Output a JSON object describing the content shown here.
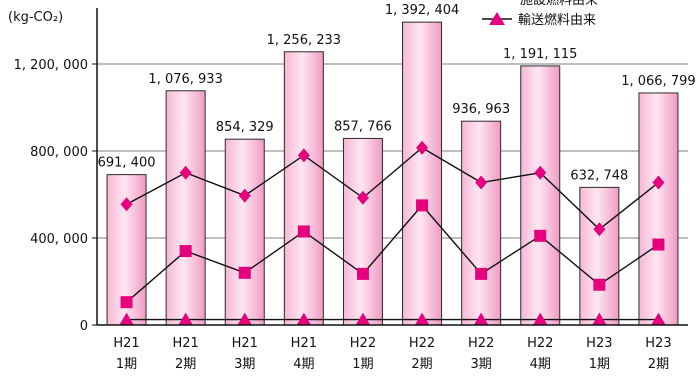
{
  "chart_data": {
    "type": "bar",
    "y_unit_label": "(kg-CO₂)",
    "categories": [
      [
        "H21",
        "1期"
      ],
      [
        "H21",
        "2期"
      ],
      [
        "H21",
        "3期"
      ],
      [
        "H21",
        "4期"
      ],
      [
        "H22",
        "1期"
      ],
      [
        "H22",
        "2期"
      ],
      [
        "H22",
        "3期"
      ],
      [
        "H22",
        "4期"
      ],
      [
        "H23",
        "1期"
      ],
      [
        "H23",
        "2期"
      ]
    ],
    "bar_series": {
      "values": [
        691400,
        1076933,
        854329,
        1256233,
        857766,
        1392404,
        936963,
        1191115,
        632748,
        1066799
      ],
      "labels": [
        "691, 400",
        "1, 076, 933",
        "854, 329",
        "1, 256, 233",
        "857, 766",
        "1, 392, 404",
        "936, 963",
        "1, 191, 115",
        "632, 748",
        "1, 066, 799"
      ],
      "color": "#f6a9cf"
    },
    "line_series": [
      {
        "marker": "diamond",
        "values": [
          555000,
          700000,
          595000,
          780000,
          585000,
          815000,
          655000,
          700000,
          440000,
          655000
        ],
        "color": "#e6007e"
      },
      {
        "marker": "square",
        "values": [
          105000,
          340000,
          240000,
          430000,
          235000,
          550000,
          235000,
          410000,
          185000,
          370000
        ],
        "color": "#e6007e"
      },
      {
        "name": "輸送燃料由来",
        "marker": "triangle",
        "values": [
          25000,
          25000,
          25000,
          25000,
          25000,
          25000,
          25000,
          25000,
          25000,
          25000
        ],
        "color": "#e6007e"
      }
    ],
    "legend_partial": "施設燃料由来",
    "ylim": [
      0,
      1400000
    ],
    "yticks": [
      0,
      400000,
      800000,
      1200000
    ],
    "ytick_labels": [
      "0",
      "400, 000",
      "800, 000",
      "1, 200, 000"
    ],
    "grid": true,
    "legend_position": "top-right"
  }
}
